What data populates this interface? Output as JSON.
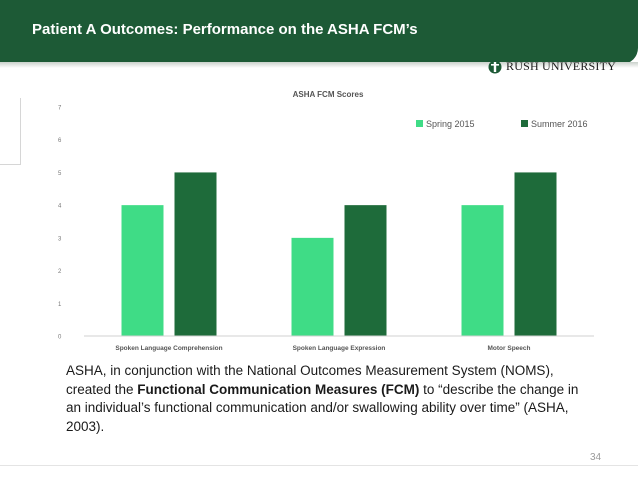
{
  "slide": {
    "title": "Patient A Outcomes: Performance on the ASHA FCM’s",
    "logo_text": "RUSH UNIVERSITY",
    "page_number": "34",
    "caption": {
      "part1": "ASHA, in conjunction with the National Outcomes Measurement System (NOMS), created the ",
      "bold": "Functional Communication Measures (FCM)",
      "part2": " to “describe the change in an individual’s functional communication and/or swallowing ability over time” (ASHA, 2003)."
    }
  },
  "colors": {
    "header_bg": "#1d5a36",
    "spring_2015": "#3fdc86",
    "summer_2016": "#1e6b3a"
  },
  "chart_data": {
    "type": "bar",
    "title": "ASHA FCM Scores",
    "categories": [
      "Spoken Language Comprehension",
      "Spoken Language Expression",
      "Motor Speech"
    ],
    "series": [
      {
        "name": "Spring 2015",
        "values": [
          4,
          3,
          4
        ]
      },
      {
        "name": "Summer 2016",
        "values": [
          5,
          4,
          5
        ]
      }
    ],
    "ylim": [
      0,
      7
    ],
    "yticks": [
      "0",
      "1",
      "2",
      "3",
      "4",
      "5",
      "6",
      "7"
    ],
    "xlabel": "",
    "ylabel": "",
    "grid": false,
    "legend": "top-right"
  }
}
